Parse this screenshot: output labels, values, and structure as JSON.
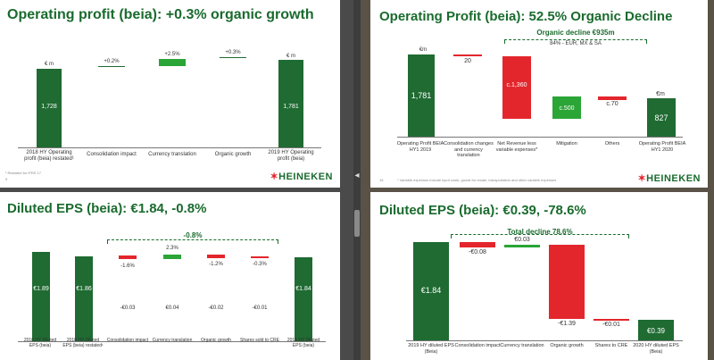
{
  "s1": {
    "title": "Operating profit (beia): +0.3% organic growth",
    "unit_left": "€ m",
    "unit_right": "€ m",
    "v1": "1,728",
    "v2": "1,781",
    "d1": "+0.2%",
    "d2": "+2.5%",
    "d3": "+0.3%",
    "x1": "2018 HY Operating profit (beia) restated¹",
    "x2": "Consolidation impact",
    "x3": "Currency translation",
    "x4": "Organic growth",
    "x5": "2019 HY Operating profit (beia)",
    "footnote": "¹ Restated for IFRS 17",
    "page": "9",
    "logo": "HEINEKEN"
  },
  "s2": {
    "title": "Operating Profit (beia): 52.5% Organic Decline",
    "bracket": "Organic decline €935m",
    "sub": "84% - EUR, MX & SA",
    "unit_left": "€m",
    "unit_right": "€m",
    "v1": "1,781",
    "v2": "20",
    "v3": "c.1,360",
    "v4": "c.500",
    "v5": "c.70",
    "v6": "827",
    "x1": "Operating Profit BEIA HY1 2019",
    "x2": "Consolidation changes and currency translation",
    "x3": "Net Revenue less variable expenses*",
    "x4": "Mitigation",
    "x5": "Others",
    "x6": "Operating Profit BEIA HY1 2020",
    "footnote": "* Variable expenses include input costs, goods for resale, transportation and other variable expenses",
    "page": "15",
    "logo": "HEINEKEN"
  },
  "s3": {
    "title": "Diluted EPS (beia): €1.84, -0.8%",
    "bracket": "-0.8%",
    "v1": "€1.89",
    "v2": "€1.86",
    "v3": "€1.84",
    "p1": "-1.6%",
    "p2": "2.3%",
    "p3": "-1.2%",
    "p4": "-0.3%",
    "e1": "-€0.03",
    "e2": "€0.04",
    "e3": "-€0.02",
    "e4": "-€0.01",
    "x1": "2018 HY Diluted EPS (beia)",
    "x2": "2018 HY Diluted EPS (beia) restated¹",
    "x3": "Consolidation impact",
    "x4": "Currency translation",
    "x5": "Organic growth",
    "x6": "Shares sold to CRE",
    "x7": "2019 HY Diluted EPS (beia)"
  },
  "s4": {
    "title": "Diluted EPS (beia): €0.39, -78.6%",
    "bracket": "Total decline 78.6%",
    "v1": "€1.84",
    "v2": "-€0.08",
    "v3": "€0.03",
    "v4": "-€1.39",
    "v5": "-€0.01",
    "v6": "€0.39",
    "x1": "2019 HY diluted EPS (Beia)",
    "x2": "Consolidation impact",
    "x3": "Currency translation",
    "x4": "Organic growth",
    "x5": "Shares to CRE",
    "x6": "2020 HY diluted EPS (Beia)"
  }
}
